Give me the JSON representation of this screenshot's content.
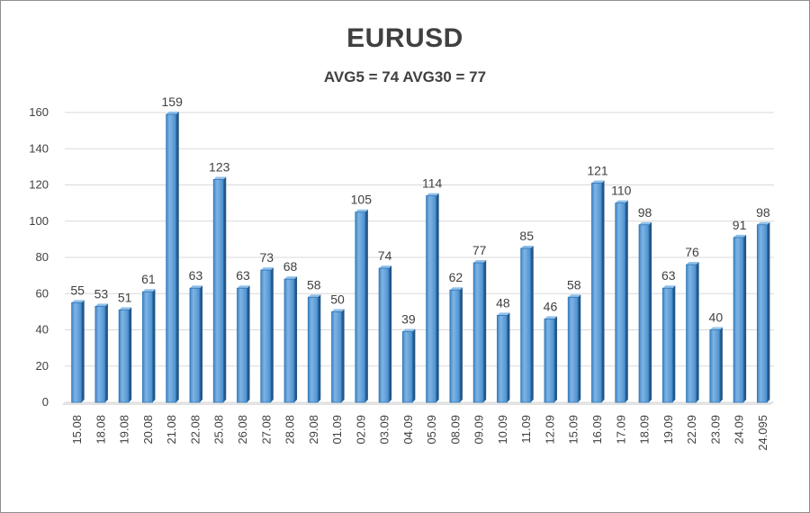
{
  "chart_data": {
    "type": "bar",
    "title": "EURUSD",
    "subtitle": "AVG5 = 74 AVG30 = 77",
    "categories": [
      "15.08",
      "18.08",
      "19.08",
      "20.08",
      "21.08",
      "22.08",
      "25.08",
      "26.08",
      "27.08",
      "28.08",
      "29.08",
      "01.09",
      "02.09",
      "03.09",
      "04.09",
      "05.09",
      "08.09",
      "09.09",
      "10.09",
      "11.09",
      "12.09",
      "15.09",
      "16.09",
      "17.09",
      "18.09",
      "19.09",
      "22.09",
      "23.09",
      "24.09",
      "24.095"
    ],
    "values": [
      55,
      53,
      51,
      61,
      159,
      63,
      123,
      63,
      73,
      68,
      58,
      50,
      105,
      74,
      39,
      114,
      62,
      77,
      48,
      85,
      46,
      58,
      121,
      110,
      98,
      63,
      76,
      40,
      91,
      98
    ],
    "ylim": [
      0,
      160
    ],
    "yticks": [
      0,
      20,
      40,
      60,
      80,
      100,
      120,
      140,
      160
    ],
    "grid": true,
    "bar_color": "#5b9bd5",
    "bar_edge_color": "#2e75b6"
  }
}
